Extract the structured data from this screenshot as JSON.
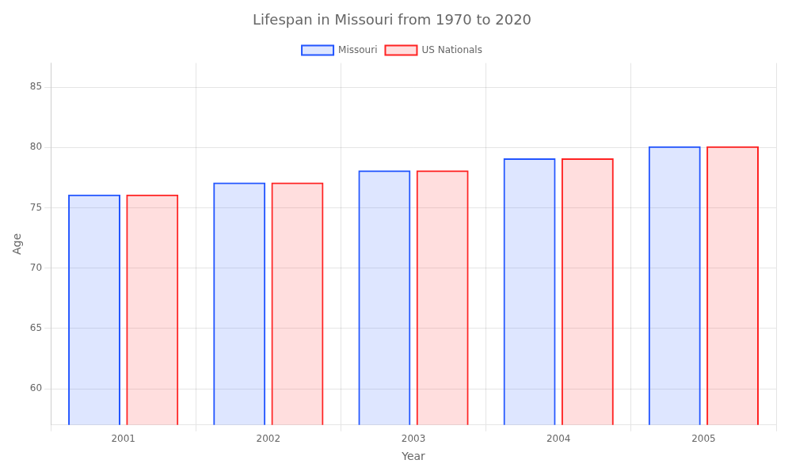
{
  "chart_data": {
    "type": "bar",
    "title": "Lifespan in Missouri from 1970 to 2020",
    "x_label": "Year",
    "y_label": "Age",
    "categories": [
      "2001",
      "2002",
      "2003",
      "2004",
      "2005"
    ],
    "series": [
      {
        "name": "Missouri",
        "color": "#2255ff",
        "values": [
          76.1,
          77.1,
          78.1,
          79.1,
          80.1
        ]
      },
      {
        "name": "US Nationals",
        "color": "#ff2222",
        "values": [
          76.1,
          77.1,
          78.1,
          79.1,
          80.1
        ]
      }
    ],
    "ylim": [
      57,
      87
    ],
    "yticks": [
      60,
      65,
      70,
      75,
      80,
      85
    ],
    "grid": true,
    "legend": "top"
  }
}
